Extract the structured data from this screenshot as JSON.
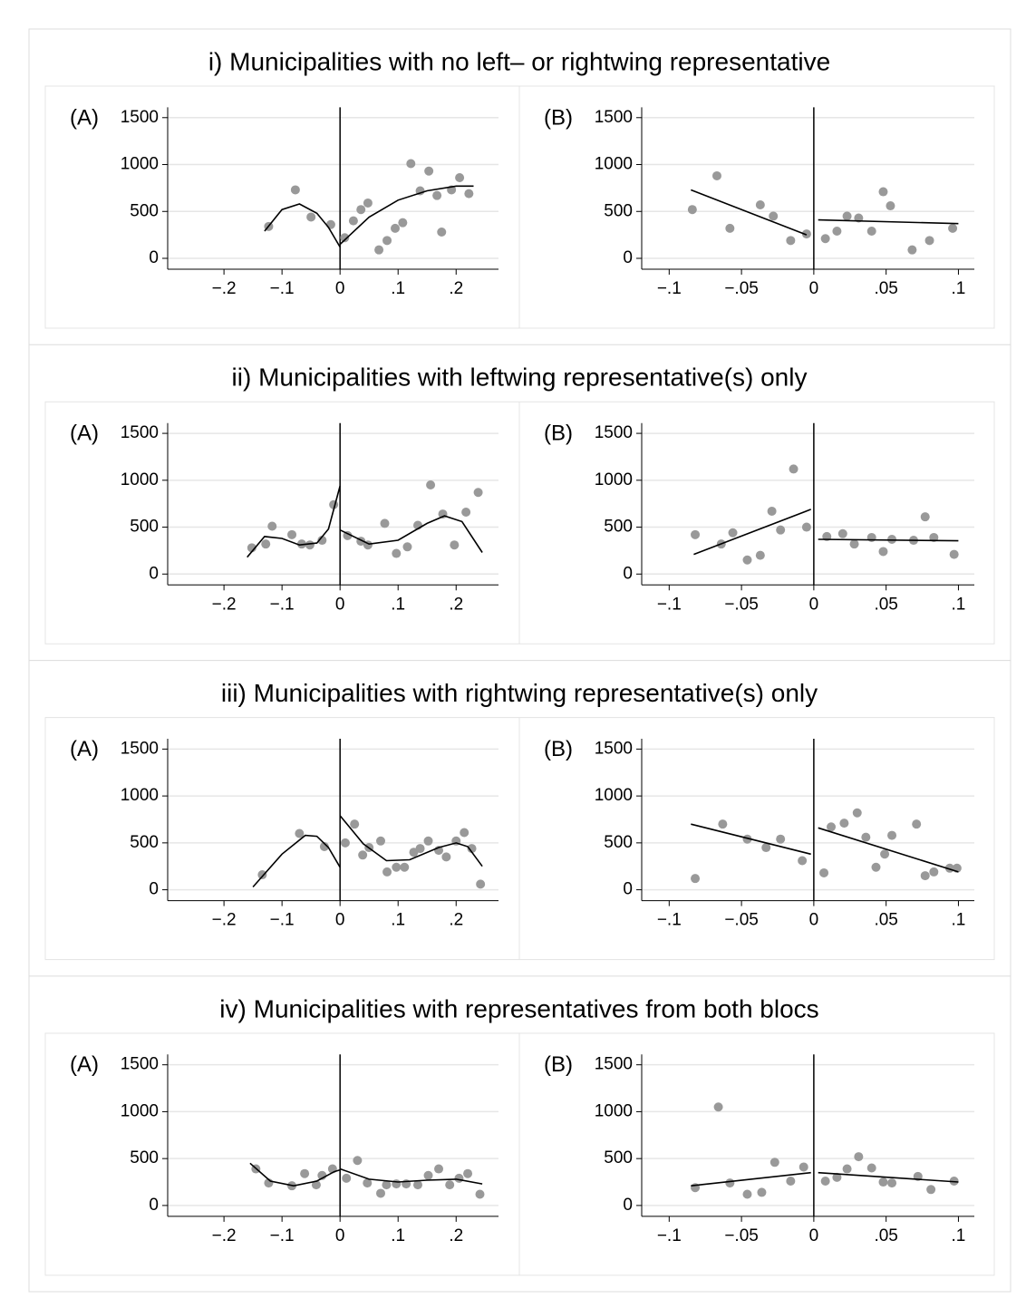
{
  "sections": [
    {
      "title": "i) Municipalities with no left– or rightwing representative"
    },
    {
      "title": "ii) Municipalities with leftwing representative(s) only"
    },
    {
      "title": "iii) Municipalities with rightwing representative(s) only"
    },
    {
      "title": "iv) Municipalities with representatives from both blocs"
    }
  ],
  "chart_data": [
    {
      "type": "scatter",
      "label": "(A)",
      "x": [
        -0.123,
        -0.077,
        -0.05,
        -0.016,
        0.008,
        0.023,
        0.036,
        0.048,
        0.067,
        0.081,
        0.095,
        0.108,
        0.122,
        0.138,
        0.153,
        0.167,
        0.175,
        0.192,
        0.206,
        0.222
      ],
      "values": [
        340,
        730,
        440,
        360,
        220,
        400,
        520,
        590,
        90,
        190,
        320,
        380,
        1010,
        720,
        930,
        670,
        280,
        730,
        860,
        690
      ],
      "fits": [
        {
          "x": [
            -0.13,
            -0.1,
            -0.07,
            -0.04,
            -0.02,
            0
          ],
          "values": [
            290,
            520,
            580,
            480,
            330,
            120
          ]
        },
        {
          "x": [
            0,
            0.05,
            0.1,
            0.15,
            0.2,
            0.23
          ],
          "values": [
            150,
            440,
            620,
            720,
            770,
            770
          ]
        }
      ],
      "cutoff": 0,
      "xlim": [
        -0.297,
        0.273
      ],
      "ylim": [
        -116,
        1610
      ],
      "xticks": [
        {
          "value": -0.2,
          "label": "−.2"
        },
        {
          "value": -0.1,
          "label": "−.1"
        },
        0,
        {
          "value": 0.1,
          "label": ".1"
        },
        {
          "value": 0.2,
          "label": ".2"
        }
      ],
      "yticks": [
        0,
        500,
        1000,
        1500
      ],
      "grid": true,
      "color": "#999999",
      "line_color": "#000000"
    },
    {
      "type": "scatter",
      "label": "(B)",
      "x": [
        -0.084,
        -0.067,
        -0.058,
        -0.037,
        -0.028,
        -0.016,
        -0.005,
        0.008,
        0.016,
        0.023,
        0.031,
        0.04,
        0.048,
        0.053,
        0.068,
        0.08,
        0.096
      ],
      "values": [
        520,
        880,
        320,
        570,
        450,
        190,
        260,
        210,
        290,
        450,
        430,
        290,
        710,
        560,
        90,
        190,
        320
      ],
      "fits": [
        {
          "x": [
            -0.085,
            -0.005
          ],
          "values": [
            730,
            250
          ]
        },
        {
          "x": [
            0.003,
            0.1
          ],
          "values": [
            410,
            370
          ]
        }
      ],
      "cutoff": 0,
      "xlim": [
        -0.119,
        0.111
      ],
      "ylim": [
        -116,
        1610
      ],
      "xticks": [
        {
          "value": -0.1,
          "label": "−.1"
        },
        {
          "value": -0.05,
          "label": "−.05"
        },
        0,
        {
          "value": 0.05,
          "label": ".05"
        },
        {
          "value": 0.1,
          "label": ".1"
        }
      ],
      "yticks": [
        0,
        500,
        1000,
        1500
      ],
      "grid": true,
      "color": "#999999",
      "line_color": "#000000"
    },
    {
      "type": "scatter",
      "label": "(A)",
      "x": [
        -0.152,
        -0.128,
        -0.117,
        -0.083,
        -0.066,
        -0.052,
        -0.031,
        -0.011,
        0.013,
        0.036,
        0.048,
        0.077,
        0.097,
        0.116,
        0.134,
        0.156,
        0.177,
        0.197,
        0.217,
        0.238
      ],
      "values": [
        280,
        320,
        510,
        420,
        320,
        310,
        360,
        740,
        410,
        350,
        310,
        540,
        220,
        290,
        520,
        950,
        640,
        310,
        660,
        870
      ],
      "fits": [
        {
          "x": [
            -0.16,
            -0.13,
            -0.1,
            -0.07,
            -0.04,
            -0.02,
            0
          ],
          "values": [
            180,
            400,
            380,
            310,
            330,
            480,
            940
          ]
        },
        {
          "x": [
            0,
            0.05,
            0.1,
            0.15,
            0.18,
            0.21,
            0.245
          ],
          "values": [
            470,
            320,
            360,
            540,
            620,
            560,
            230
          ]
        }
      ],
      "cutoff": 0,
      "xlim": [
        -0.297,
        0.273
      ],
      "ylim": [
        -116,
        1610
      ],
      "xticks": [
        {
          "value": -0.2,
          "label": "−.2"
        },
        {
          "value": -0.1,
          "label": "−.1"
        },
        0,
        {
          "value": 0.1,
          "label": ".1"
        },
        {
          "value": 0.2,
          "label": ".2"
        }
      ],
      "yticks": [
        0,
        500,
        1000,
        1500
      ],
      "grid": true,
      "color": "#999999",
      "line_color": "#000000"
    },
    {
      "type": "scatter",
      "label": "(B)",
      "x": [
        -0.082,
        -0.064,
        -0.056,
        -0.046,
        -0.037,
        -0.029,
        -0.023,
        -0.014,
        -0.005,
        0.009,
        0.02,
        0.028,
        0.04,
        0.048,
        0.054,
        0.069,
        0.077,
        0.083,
        0.097
      ],
      "values": [
        420,
        320,
        440,
        150,
        200,
        670,
        470,
        1120,
        500,
        400,
        430,
        320,
        390,
        240,
        370,
        360,
        610,
        390,
        210
      ],
      "fits": [
        {
          "x": [
            -0.083,
            -0.002
          ],
          "values": [
            210,
            690
          ]
        },
        {
          "x": [
            0.003,
            0.1
          ],
          "values": [
            370,
            355
          ]
        }
      ],
      "cutoff": 0,
      "xlim": [
        -0.119,
        0.111
      ],
      "ylim": [
        -116,
        1610
      ],
      "xticks": [
        {
          "value": -0.1,
          "label": "−.1"
        },
        {
          "value": -0.05,
          "label": "−.05"
        },
        0,
        {
          "value": 0.05,
          "label": ".05"
        },
        {
          "value": 0.1,
          "label": ".1"
        }
      ],
      "yticks": [
        0,
        500,
        1000,
        1500
      ],
      "grid": true,
      "color": "#999999",
      "line_color": "#000000"
    },
    {
      "type": "scatter",
      "label": "(A)",
      "x": [
        -0.134,
        -0.07,
        -0.027,
        0.009,
        0.025,
        0.039,
        0.05,
        0.07,
        0.081,
        0.097,
        0.111,
        0.127,
        0.138,
        0.152,
        0.17,
        0.183,
        0.2,
        0.214,
        0.227,
        0.242
      ],
      "values": [
        160,
        600,
        460,
        500,
        700,
        370,
        450,
        520,
        190,
        240,
        240,
        400,
        440,
        520,
        420,
        350,
        520,
        610,
        440,
        60
      ],
      "fits": [
        {
          "x": [
            -0.15,
            -0.1,
            -0.06,
            -0.04,
            -0.02,
            0
          ],
          "values": [
            30,
            380,
            580,
            570,
            450,
            240
          ]
        },
        {
          "x": [
            0,
            0.04,
            0.08,
            0.12,
            0.17,
            0.2,
            0.22,
            0.245
          ],
          "values": [
            790,
            490,
            310,
            320,
            450,
            500,
            460,
            250
          ]
        }
      ],
      "cutoff": 0,
      "xlim": [
        -0.297,
        0.273
      ],
      "ylim": [
        -116,
        1610
      ],
      "xticks": [
        {
          "value": -0.2,
          "label": "−.2"
        },
        {
          "value": -0.1,
          "label": "−.1"
        },
        0,
        {
          "value": 0.1,
          "label": ".1"
        },
        {
          "value": 0.2,
          "label": ".2"
        }
      ],
      "yticks": [
        0,
        500,
        1000,
        1500
      ],
      "grid": true,
      "color": "#999999",
      "line_color": "#000000"
    },
    {
      "type": "scatter",
      "label": "(B)",
      "x": [
        -0.082,
        -0.063,
        -0.046,
        -0.033,
        -0.023,
        -0.008,
        0.007,
        0.012,
        0.021,
        0.03,
        0.036,
        0.043,
        0.049,
        0.054,
        0.071,
        0.077,
        0.083,
        0.094,
        0.099
      ],
      "values": [
        120,
        700,
        540,
        450,
        540,
        310,
        180,
        670,
        710,
        820,
        560,
        240,
        380,
        580,
        700,
        150,
        190,
        230,
        230
      ],
      "fits": [
        {
          "x": [
            -0.085,
            -0.002
          ],
          "values": [
            700,
            380
          ]
        },
        {
          "x": [
            0.003,
            0.1
          ],
          "values": [
            660,
            190
          ]
        }
      ],
      "cutoff": 0,
      "xlim": [
        -0.119,
        0.111
      ],
      "ylim": [
        -116,
        1610
      ],
      "xticks": [
        {
          "value": -0.1,
          "label": "−.1"
        },
        {
          "value": -0.05,
          "label": "−.05"
        },
        0,
        {
          "value": 0.05,
          "label": ".05"
        },
        {
          "value": 0.1,
          "label": ".1"
        }
      ],
      "yticks": [
        0,
        500,
        1000,
        1500
      ],
      "grid": true,
      "color": "#999999",
      "line_color": "#000000"
    },
    {
      "type": "scatter",
      "label": "(A)",
      "x": [
        -0.145,
        -0.123,
        -0.083,
        -0.061,
        -0.041,
        -0.031,
        -0.013,
        0.011,
        0.03,
        0.047,
        0.07,
        0.08,
        0.097,
        0.114,
        0.134,
        0.152,
        0.17,
        0.189,
        0.205,
        0.22,
        0.241
      ],
      "values": [
        390,
        240,
        210,
        340,
        220,
        320,
        390,
        290,
        480,
        240,
        130,
        220,
        230,
        230,
        220,
        320,
        390,
        220,
        290,
        340,
        120
      ],
      "fits": [
        {
          "x": [
            -0.155,
            -0.12,
            -0.08,
            -0.04,
            -0.01,
            0
          ],
          "values": [
            450,
            260,
            210,
            260,
            360,
            380
          ]
        },
        {
          "x": [
            0,
            0.05,
            0.1,
            0.15,
            0.2,
            0.245
          ],
          "values": [
            390,
            280,
            250,
            270,
            280,
            230
          ]
        }
      ],
      "cutoff": 0,
      "xlim": [
        -0.297,
        0.273
      ],
      "ylim": [
        -116,
        1610
      ],
      "xticks": [
        {
          "value": -0.2,
          "label": "−.2"
        },
        {
          "value": -0.1,
          "label": "−.1"
        },
        0,
        {
          "value": 0.1,
          "label": ".1"
        },
        {
          "value": 0.2,
          "label": ".2"
        }
      ],
      "yticks": [
        0,
        500,
        1000,
        1500
      ],
      "grid": true,
      "color": "#999999",
      "line_color": "#000000"
    },
    {
      "type": "scatter",
      "label": "(B)",
      "x": [
        -0.082,
        -0.066,
        -0.058,
        -0.046,
        -0.036,
        -0.027,
        -0.016,
        -0.007,
        0.008,
        0.016,
        0.023,
        0.031,
        0.04,
        0.048,
        0.054,
        0.072,
        0.081,
        0.097
      ],
      "values": [
        190,
        1050,
        240,
        120,
        140,
        460,
        260,
        410,
        260,
        300,
        390,
        520,
        400,
        250,
        240,
        310,
        170,
        260
      ],
      "fits": [
        {
          "x": [
            -0.085,
            -0.002
          ],
          "values": [
            210,
            350
          ]
        },
        {
          "x": [
            0.003,
            0.1
          ],
          "values": [
            350,
            250
          ]
        }
      ],
      "cutoff": 0,
      "xlim": [
        -0.119,
        0.111
      ],
      "ylim": [
        -116,
        1610
      ],
      "xticks": [
        {
          "value": -0.1,
          "label": "−.1"
        },
        {
          "value": -0.05,
          "label": "−.05"
        },
        0,
        {
          "value": 0.05,
          "label": ".05"
        },
        {
          "value": 0.1,
          "label": ".1"
        }
      ],
      "yticks": [
        0,
        500,
        1000,
        1500
      ],
      "grid": true,
      "color": "#999999",
      "line_color": "#000000"
    }
  ]
}
